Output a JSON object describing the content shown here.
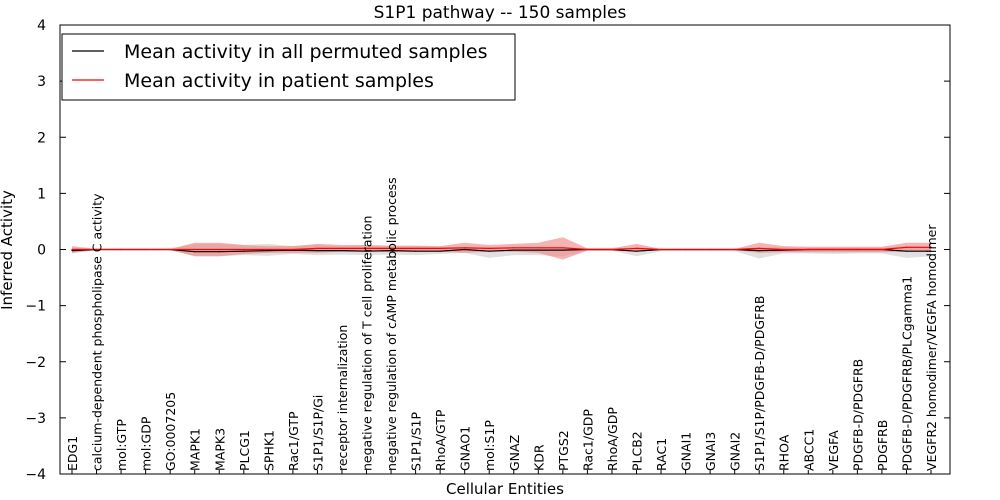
{
  "chart_data": {
    "type": "line",
    "title": "S1P1 pathway -- 150 samples",
    "xlabel": "Cellular Entities",
    "ylabel": "Inferred Activity",
    "ylim": [
      -4,
      4
    ],
    "yticks": [
      "−4",
      "−3",
      "−2",
      "−1",
      "0",
      "1",
      "2",
      "3",
      "4"
    ],
    "legend_position": "top-left",
    "categories": [
      "EDG1",
      "calcium-dependent phospholipase C activity",
      "mol:GTP",
      "mol:GDP",
      "GO:0007205",
      "MAPK1",
      "MAPK3",
      "PLCG1",
      "SPHK1",
      "Rac1/GTP",
      "S1P1/S1P/Gi",
      "receptor internalization",
      "negative regulation of T cell proliferation",
      "negative regulation of cAMP metabolic process",
      "S1P1/S1P",
      "RhoA/GTP",
      "GNAO1",
      "mol:S1P",
      "GNAZ",
      "KDR",
      "PTGS2",
      "Rac1/GDP",
      "RhoA/GDP",
      "PLCB2",
      "RAC1",
      "GNAI1",
      "GNAI3",
      "GNAI2",
      "S1P1/S1P/PDGFB-D/PDGFRB",
      "RHOA",
      "ABCC1",
      "VEGFA",
      "PDGFB-D/PDGFRB",
      "PDGFRB",
      "PDGFB-D/PDGFRB/PLCgamma1",
      "VEGFR2 homodimer/VEGFA homodimer"
    ],
    "series": [
      {
        "name": "Mean activity in all permuted samples",
        "color": "#000000",
        "band_color": "#cccccc",
        "values": [
          -0.02,
          0.0,
          0.0,
          0.0,
          0.0,
          -0.04,
          -0.04,
          -0.03,
          -0.02,
          -0.01,
          -0.02,
          -0.02,
          -0.03,
          -0.02,
          -0.03,
          -0.03,
          0.0,
          -0.03,
          -0.01,
          -0.01,
          -0.01,
          0.0,
          0.0,
          -0.03,
          0.0,
          0.0,
          0.0,
          0.0,
          -0.02,
          -0.01,
          0.0,
          0.0,
          0.0,
          0.0,
          -0.03,
          -0.03
        ],
        "band_upper": [
          0.03,
          0.01,
          0.01,
          0.01,
          0.01,
          0.1,
          0.1,
          0.08,
          0.1,
          0.06,
          0.08,
          0.06,
          0.07,
          0.06,
          0.06,
          0.05,
          0.04,
          0.04,
          0.05,
          0.05,
          0.05,
          0.02,
          0.02,
          0.04,
          0.01,
          0.01,
          0.01,
          0.01,
          0.04,
          0.04,
          0.03,
          0.03,
          0.03,
          0.03,
          0.06,
          0.05
        ],
        "band_lower": [
          -0.07,
          -0.01,
          -0.01,
          -0.01,
          -0.01,
          -0.12,
          -0.12,
          -0.1,
          -0.11,
          -0.08,
          -0.1,
          -0.09,
          -0.1,
          -0.09,
          -0.1,
          -0.08,
          -0.06,
          -0.15,
          -0.1,
          -0.1,
          -0.12,
          -0.02,
          -0.02,
          -0.12,
          -0.03,
          -0.03,
          -0.03,
          -0.03,
          -0.16,
          -0.07,
          -0.07,
          -0.08,
          -0.07,
          -0.07,
          -0.15,
          -0.12
        ]
      },
      {
        "name": "Mean activity in patient samples",
        "color": "#ff0000",
        "band_color": "#f08080",
        "values": [
          0.0,
          0.0,
          0.0,
          0.0,
          0.0,
          0.0,
          0.0,
          0.0,
          0.0,
          0.0,
          0.02,
          0.02,
          0.02,
          0.02,
          0.02,
          0.02,
          0.03,
          0.02,
          0.03,
          0.03,
          0.03,
          0.0,
          0.0,
          0.02,
          0.0,
          0.0,
          0.0,
          0.0,
          0.02,
          0.0,
          0.0,
          0.0,
          0.0,
          0.0,
          0.04,
          0.04
        ],
        "band_upper": [
          0.06,
          0.01,
          0.01,
          0.01,
          0.01,
          0.12,
          0.12,
          0.08,
          0.06,
          0.06,
          0.1,
          0.08,
          0.08,
          0.07,
          0.07,
          0.06,
          0.12,
          0.08,
          0.1,
          0.12,
          0.22,
          0.02,
          0.02,
          0.1,
          0.01,
          0.01,
          0.01,
          0.01,
          0.12,
          0.06,
          0.05,
          0.05,
          0.05,
          0.05,
          0.12,
          0.12
        ],
        "band_lower": [
          -0.06,
          -0.01,
          -0.01,
          -0.01,
          -0.01,
          -0.12,
          -0.12,
          -0.08,
          -0.06,
          -0.06,
          -0.06,
          -0.04,
          -0.04,
          -0.04,
          -0.04,
          -0.04,
          -0.06,
          -0.04,
          -0.04,
          -0.06,
          -0.18,
          -0.02,
          -0.02,
          -0.04,
          -0.01,
          -0.01,
          -0.01,
          -0.01,
          -0.06,
          -0.05,
          -0.05,
          -0.05,
          -0.05,
          -0.05,
          -0.04,
          -0.04
        ]
      }
    ]
  }
}
